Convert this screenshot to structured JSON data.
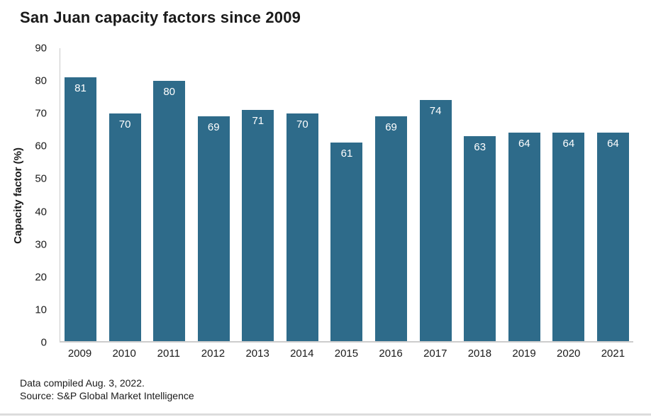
{
  "chart_data": {
    "type": "bar",
    "title": "San Juan capacity factors since 2009",
    "categories": [
      "2009",
      "2010",
      "2011",
      "2012",
      "2013",
      "2014",
      "2015",
      "2016",
      "2017",
      "2018",
      "2019",
      "2020",
      "2021"
    ],
    "values": [
      81,
      70,
      80,
      69,
      71,
      70,
      61,
      69,
      74,
      63,
      64,
      64,
      64
    ],
    "xlabel": "",
    "ylabel": "Capacity factor (%)",
    "ylim": [
      0,
      90
    ],
    "yticks": [
      0,
      10,
      20,
      30,
      40,
      50,
      60,
      70,
      80,
      90
    ],
    "grid": false,
    "legend": "none",
    "bar_color": "#2e6b8a",
    "value_label_color": "#ffffff",
    "axis_line_color": "#c9c9c9"
  },
  "footer": {
    "line1": "Data compiled Aug. 3, 2022.",
    "line2": "Source: S&P Global Market Intelligence"
  }
}
